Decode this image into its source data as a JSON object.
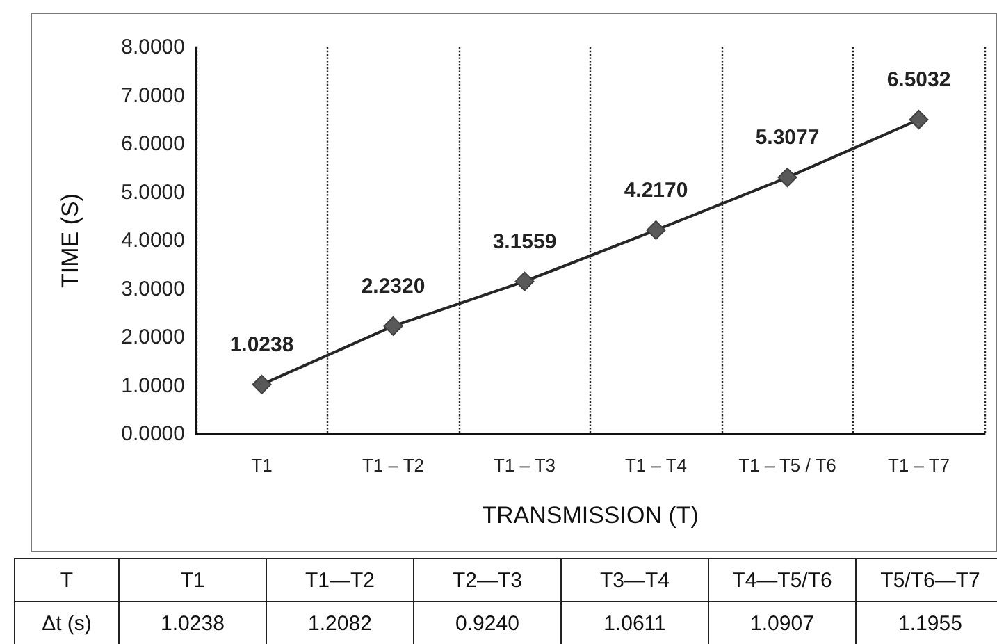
{
  "chart_data": [
    {
      "type": "line",
      "xlabel": "TRANSMISSION (T)",
      "ylabel": "TIME (S)",
      "categories": [
        "T1",
        "T1 – T2",
        "T1 – T3",
        "T1 – T4",
        "T1 – T5 / T6",
        "T1 – T7"
      ],
      "series": [
        {
          "color": "#262626",
          "values": [
            1.0238,
            2.232,
            3.1559,
            4.217,
            5.3077,
            6.5032
          ],
          "value_labels": [
            "1.0238",
            "2.2320",
            "3.1559",
            "4.2170",
            "5.3077",
            "6.5032"
          ]
        }
      ],
      "ylim": [
        0,
        8
      ],
      "yticks": [
        {
          "value": 0,
          "label": "0.0000"
        },
        {
          "value": 1,
          "label": "1.0000"
        },
        {
          "value": 2,
          "label": "2.0000"
        },
        {
          "value": 3,
          "label": "3.0000"
        },
        {
          "value": 4,
          "label": "4.0000"
        },
        {
          "value": 5,
          "label": "5.0000"
        },
        {
          "value": 6,
          "label": "6.0000"
        },
        {
          "value": 7,
          "label": "7.0000"
        },
        {
          "value": 8,
          "label": "8.0000"
        }
      ],
      "grid": "x",
      "marker": "diamond",
      "line_style": "solid"
    },
    {
      "type": "other",
      "xlabel": "T",
      "ylabel": "Δt (s)",
      "categories": [
        "T1",
        "T1—T2",
        "T2—T3",
        "T3—T4",
        "T4—T5/T6",
        "T5/T6—T7"
      ],
      "value_labels": [
        "1.0238",
        "1.2082",
        "0.9240",
        "1.0611",
        "1.0907",
        "1.1955"
      ]
    }
  ]
}
